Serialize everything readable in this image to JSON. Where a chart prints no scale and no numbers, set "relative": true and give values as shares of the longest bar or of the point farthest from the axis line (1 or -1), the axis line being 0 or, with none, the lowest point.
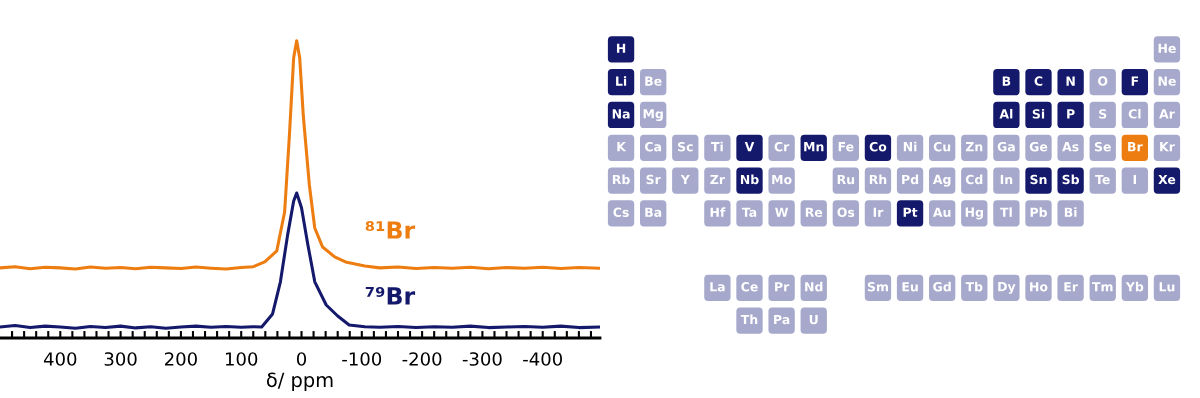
{
  "chart_data": [
    {
      "type": "line",
      "relative": true,
      "xlabel": "δ/ ppm",
      "xlim": [
        500,
        -495
      ],
      "xticks": [
        {
          "value": 480,
          "label": null
        },
        {
          "value": 460,
          "label": null
        },
        {
          "value": 440,
          "label": null
        },
        {
          "value": 420,
          "label": null
        },
        400,
        {
          "value": 380,
          "label": null
        },
        {
          "value": 360,
          "label": null
        },
        {
          "value": 340,
          "label": null
        },
        {
          "value": 320,
          "label": null
        },
        300,
        {
          "value": 280,
          "label": null
        },
        {
          "value": 260,
          "label": null
        },
        {
          "value": 240,
          "label": null
        },
        {
          "value": 220,
          "label": null
        },
        200,
        {
          "value": 180,
          "label": null
        },
        {
          "value": 160,
          "label": null
        },
        {
          "value": 140,
          "label": null
        },
        {
          "value": 120,
          "label": null
        },
        100,
        {
          "value": 80,
          "label": null
        },
        {
          "value": 60,
          "label": null
        },
        {
          "value": 40,
          "label": null
        },
        {
          "value": 20,
          "label": null
        },
        0,
        {
          "value": -20,
          "label": null
        },
        {
          "value": -40,
          "label": null
        },
        {
          "value": -60,
          "label": null
        },
        {
          "value": -80,
          "label": null
        },
        -100,
        {
          "value": -120,
          "label": null
        },
        {
          "value": -140,
          "label": null
        },
        {
          "value": -160,
          "label": null
        },
        {
          "value": -180,
          "label": null
        },
        -200,
        {
          "value": -220,
          "label": null
        },
        {
          "value": -240,
          "label": null
        },
        {
          "value": -260,
          "label": null
        },
        {
          "value": -280,
          "label": null
        },
        -300,
        {
          "value": -320,
          "label": null
        },
        {
          "value": -340,
          "label": null
        },
        {
          "value": -360,
          "label": null
        },
        {
          "value": -380,
          "label": null
        },
        -400,
        {
          "value": -420,
          "label": null
        },
        {
          "value": -440,
          "label": null
        },
        {
          "value": -460,
          "label": null
        },
        {
          "value": -480,
          "label": null
        }
      ],
      "tick_labels": "x",
      "grid": false,
      "legend": false,
      "marker": "none",
      "line_style": "solid",
      "series": [
        {
          "name": "⁸¹Br",
          "color": "#ee7d11",
          "x": [
            500,
            475,
            450,
            425,
            400,
            375,
            350,
            325,
            300,
            275,
            250,
            225,
            200,
            175,
            150,
            125,
            100,
            80,
            61,
            41,
            28,
            20,
            13,
            8,
            3,
            -3,
            -13,
            -22,
            -35,
            -55,
            -73,
            -105,
            -130,
            -160,
            -190,
            -220,
            -250,
            -280,
            -310,
            -340,
            -370,
            -400,
            -430,
            -460,
            -495
          ],
          "values": [
            0.236,
            0.24,
            0.233,
            0.238,
            0.236,
            0.232,
            0.239,
            0.235,
            0.237,
            0.233,
            0.238,
            0.236,
            0.234,
            0.239,
            0.235,
            0.232,
            0.237,
            0.24,
            0.256,
            0.293,
            0.424,
            0.684,
            0.943,
            1,
            0.943,
            0.747,
            0.515,
            0.37,
            0.306,
            0.273,
            0.256,
            0.242,
            0.236,
            0.239,
            0.234,
            0.237,
            0.235,
            0.238,
            0.233,
            0.237,
            0.235,
            0.238,
            0.234,
            0.237,
            0.235
          ]
        },
        {
          "name": "⁷⁹Br",
          "color": "#15196b",
          "x": [
            500,
            475,
            450,
            425,
            400,
            375,
            350,
            325,
            300,
            275,
            250,
            225,
            200,
            175,
            150,
            125,
            100,
            80,
            66,
            48,
            35,
            23,
            13,
            8,
            0,
            -10,
            -22,
            -41,
            -60,
            -79,
            -105,
            -130,
            -160,
            -190,
            -220,
            -250,
            -280,
            -310,
            -340,
            -370,
            -400,
            -430,
            -460,
            -495
          ],
          "values": [
            0.037,
            0.042,
            0.035,
            0.04,
            0.037,
            0.033,
            0.039,
            0.035,
            0.04,
            0.034,
            0.038,
            0.033,
            0.037,
            0.04,
            0.036,
            0.039,
            0.036,
            0.038,
            0.037,
            0.081,
            0.189,
            0.347,
            0.461,
            0.488,
            0.438,
            0.32,
            0.189,
            0.111,
            0.074,
            0.044,
            0.038,
            0.036,
            0.039,
            0.035,
            0.038,
            0.036,
            0.04,
            0.035,
            0.037,
            0.039,
            0.036,
            0.04,
            0.035,
            0.037
          ]
        }
      ]
    },
    {
      "type": "other",
      "cell_labels": [
        [
          "H",
          null,
          null,
          null,
          null,
          null,
          null,
          null,
          null,
          null,
          null,
          null,
          null,
          null,
          null,
          null,
          null,
          "He"
        ],
        [
          "Li",
          "Be",
          null,
          null,
          null,
          null,
          null,
          null,
          null,
          null,
          null,
          null,
          "B",
          "C",
          "N",
          "O",
          "F",
          "Ne"
        ],
        [
          "Na",
          "Mg",
          null,
          null,
          null,
          null,
          null,
          null,
          null,
          null,
          null,
          null,
          "Al",
          "Si",
          "P",
          "S",
          "Cl",
          "Ar"
        ],
        [
          "K",
          "Ca",
          "Sc",
          "Ti",
          "V",
          "Cr",
          "Mn",
          "Fe",
          "Co",
          "Ni",
          "Cu",
          "Zn",
          "Ga",
          "Ge",
          "As",
          "Se",
          "Br",
          "Kr"
        ],
        [
          "Rb",
          "Sr",
          "Y",
          "Zr",
          "Nb",
          "Mo",
          null,
          "Ru",
          "Rh",
          "Pd",
          "Ag",
          "Cd",
          "In",
          "Sn",
          "Sb",
          "Te",
          "I",
          "Xe"
        ],
        [
          "Cs",
          "Ba",
          null,
          "Hf",
          "Ta",
          "W",
          "Re",
          "Os",
          "Ir",
          "Pt",
          "Au",
          "Hg",
          "Tl",
          "Pb",
          "Bi",
          null,
          null,
          null
        ],
        [
          null,
          null,
          null,
          null,
          null,
          null,
          null,
          null,
          null,
          null,
          null,
          null,
          null,
          null,
          null,
          null,
          null,
          null
        ],
        [
          null,
          null,
          null,
          "La",
          "Ce",
          "Pr",
          "Nd",
          null,
          "Sm",
          "Eu",
          "Gd",
          "Tb",
          "Dy",
          "Ho",
          "Er",
          "Tm",
          "Yb",
          "Lu"
        ],
        [
          null,
          null,
          null,
          null,
          "Th",
          "Pa",
          "U",
          null,
          null,
          null,
          null,
          null,
          null,
          null,
          null,
          null,
          null,
          null
        ]
      ],
      "colors": [
        [
          "#15196b",
          null,
          null,
          null,
          null,
          null,
          null,
          null,
          null,
          null,
          null,
          null,
          null,
          null,
          null,
          null,
          null,
          "#a6a9cb"
        ],
        [
          "#15196b",
          "#a6a9cb",
          null,
          null,
          null,
          null,
          null,
          null,
          null,
          null,
          null,
          null,
          "#15196b",
          "#15196b",
          "#15196b",
          "#a6a9cb",
          "#15196b",
          "#a6a9cb"
        ],
        [
          "#15196b",
          "#a6a9cb",
          null,
          null,
          null,
          null,
          null,
          null,
          null,
          null,
          null,
          null,
          "#15196b",
          "#15196b",
          "#15196b",
          "#a6a9cb",
          "#a6a9cb",
          "#a6a9cb"
        ],
        [
          "#a6a9cb",
          "#a6a9cb",
          "#a6a9cb",
          "#a6a9cb",
          "#15196b",
          "#a6a9cb",
          "#15196b",
          "#a6a9cb",
          "#15196b",
          "#a6a9cb",
          "#a6a9cb",
          "#a6a9cb",
          "#a6a9cb",
          "#a6a9cb",
          "#a6a9cb",
          "#a6a9cb",
          "#ee7d11",
          "#a6a9cb"
        ],
        [
          "#a6a9cb",
          "#a6a9cb",
          "#a6a9cb",
          "#a6a9cb",
          "#15196b",
          "#a6a9cb",
          null,
          "#a6a9cb",
          "#a6a9cb",
          "#a6a9cb",
          "#a6a9cb",
          "#a6a9cb",
          "#a6a9cb",
          "#15196b",
          "#15196b",
          "#a6a9cb",
          "#a6a9cb",
          "#15196b"
        ],
        [
          "#a6a9cb",
          "#a6a9cb",
          null,
          "#a6a9cb",
          "#a6a9cb",
          "#a6a9cb",
          "#a6a9cb",
          "#a6a9cb",
          "#a6a9cb",
          "#15196b",
          "#a6a9cb",
          "#a6a9cb",
          "#a6a9cb",
          "#a6a9cb",
          "#a6a9cb",
          null,
          null,
          null
        ],
        [
          null,
          null,
          null,
          null,
          null,
          null,
          null,
          null,
          null,
          null,
          null,
          null,
          null,
          null,
          null,
          null,
          null,
          null
        ],
        [
          null,
          null,
          null,
          "#a6a9cb",
          "#a6a9cb",
          "#a6a9cb",
          "#a6a9cb",
          null,
          "#a6a9cb",
          "#a6a9cb",
          "#a6a9cb",
          "#a6a9cb",
          "#a6a9cb",
          "#a6a9cb",
          "#a6a9cb",
          "#a6a9cb",
          "#a6a9cb",
          "#a6a9cb"
        ],
        [
          null,
          null,
          null,
          null,
          "#a6a9cb",
          "#a6a9cb",
          "#a6a9cb",
          null,
          null,
          null,
          null,
          null,
          null,
          null,
          null,
          null,
          null,
          null
        ]
      ]
    }
  ]
}
